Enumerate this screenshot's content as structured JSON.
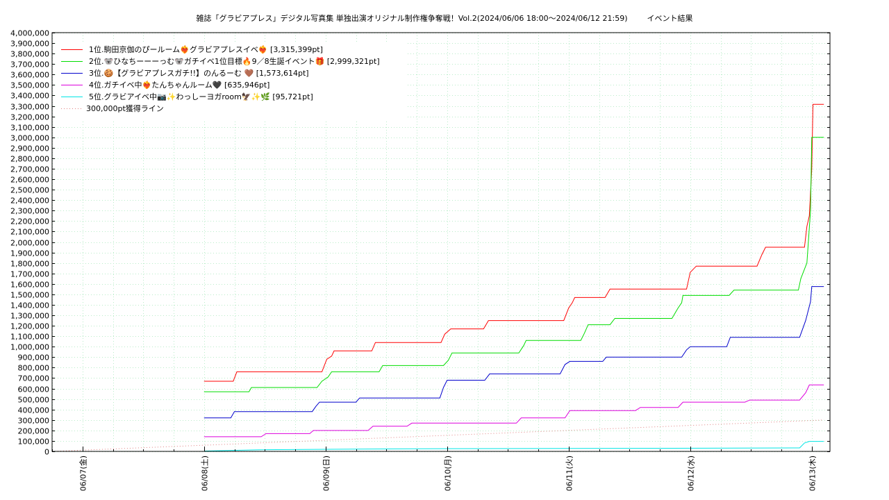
{
  "chart_data": {
    "type": "line",
    "title": "雑誌「グラビアプレス」デジタル写真集 単独出演オリジナル制作権争奪戦！Vol.2(2024/06/06 18:00～2024/06/12 21:59)",
    "subtitle": "イベント結果",
    "xlabel": "",
    "ylabel": "",
    "xlim": [
      0,
      6.4
    ],
    "ylim": [
      0,
      4000000
    ],
    "grid": true,
    "legend_position": "top-left",
    "y_ticks": [
      "0",
      "100,000",
      "200,000",
      "300,000",
      "400,000",
      "500,000",
      "600,000",
      "700,000",
      "800,000",
      "900,000",
      "1,000,000",
      "1,100,000",
      "1,200,000",
      "1,300,000",
      "1,400,000",
      "1,500,000",
      "1,600,000",
      "1,700,000",
      "1,800,000",
      "1,900,000",
      "2,000,000",
      "2,100,000",
      "2,200,000",
      "2,300,000",
      "2,400,000",
      "2,500,000",
      "2,600,000",
      "2,700,000",
      "2,800,000",
      "2,900,000",
      "3,000,000",
      "3,100,000",
      "3,200,000",
      "3,300,000",
      "3,400,000",
      "3,500,000",
      "3,600,000",
      "3,700,000",
      "3,800,000",
      "3,900,000",
      "4,000,000"
    ],
    "x_ticks": [
      {
        "label": "06/07(金)",
        "x": 0.25
      },
      {
        "label": "06/08(土)",
        "x": 1.25
      },
      {
        "label": "06/09(日)",
        "x": 2.25
      },
      {
        "label": "06/10(月)",
        "x": 3.25
      },
      {
        "label": "06/11(火)",
        "x": 4.25
      },
      {
        "label": "06/12(水)",
        "x": 5.25
      },
      {
        "label": "06/13(木)",
        "x": 6.25
      }
    ],
    "series": [
      {
        "name": "1位.駒田京伽のぴールーム❤️‍🔥グラビアプレスイベ❤️‍🔥 [3,315,399pt]",
        "color": "#ff0000",
        "points": [
          [
            1.25,
            670000
          ],
          [
            1.49,
            670000
          ],
          [
            1.52,
            760000
          ],
          [
            2.22,
            760000
          ],
          [
            2.26,
            880000
          ],
          [
            2.3,
            910000
          ],
          [
            2.32,
            960000
          ],
          [
            2.63,
            960000
          ],
          [
            2.66,
            1040000
          ],
          [
            3.2,
            1040000
          ],
          [
            3.23,
            1120000
          ],
          [
            3.28,
            1170000
          ],
          [
            3.55,
            1170000
          ],
          [
            3.59,
            1250000
          ],
          [
            4.21,
            1250000
          ],
          [
            4.25,
            1370000
          ],
          [
            4.28,
            1420000
          ],
          [
            4.3,
            1470000
          ],
          [
            4.55,
            1470000
          ],
          [
            4.59,
            1550000
          ],
          [
            5.22,
            1550000
          ],
          [
            5.25,
            1710000
          ],
          [
            5.3,
            1770000
          ],
          [
            5.51,
            1770000
          ],
          [
            5.8,
            1770000
          ],
          [
            5.84,
            1880000
          ],
          [
            5.87,
            1950000
          ],
          [
            6.19,
            1950000
          ],
          [
            6.21,
            2150000
          ],
          [
            6.23,
            2250000
          ],
          [
            6.25,
            2700000
          ],
          [
            6.26,
            3315000
          ],
          [
            6.35,
            3315000
          ]
        ]
      },
      {
        "name": "2位.🐨ひなちーーーっむ🐨ガチイベ1位目標🔥9／8生誕イベント🎁 [2,999,321pt]",
        "color": "#00dd00",
        "points": [
          [
            1.25,
            570000
          ],
          [
            1.62,
            570000
          ],
          [
            1.64,
            610000
          ],
          [
            2.18,
            610000
          ],
          [
            2.22,
            670000
          ],
          [
            2.27,
            710000
          ],
          [
            2.3,
            760000
          ],
          [
            2.69,
            760000
          ],
          [
            2.72,
            820000
          ],
          [
            3.22,
            820000
          ],
          [
            3.26,
            870000
          ],
          [
            3.29,
            940000
          ],
          [
            3.84,
            940000
          ],
          [
            3.88,
            1010000
          ],
          [
            3.9,
            1060000
          ],
          [
            4.35,
            1060000
          ],
          [
            4.38,
            1130000
          ],
          [
            4.41,
            1210000
          ],
          [
            4.59,
            1210000
          ],
          [
            4.63,
            1270000
          ],
          [
            5.1,
            1270000
          ],
          [
            5.15,
            1370000
          ],
          [
            5.18,
            1420000
          ],
          [
            5.19,
            1490000
          ],
          [
            5.57,
            1490000
          ],
          [
            5.61,
            1540000
          ],
          [
            6.14,
            1540000
          ],
          [
            6.16,
            1650000
          ],
          [
            6.21,
            1800000
          ],
          [
            6.24,
            2300000
          ],
          [
            6.25,
            3000000
          ],
          [
            6.35,
            3000000
          ]
        ]
      },
      {
        "name": "3位.🍪【グラビアプレスガチ!!】のんるーむ 🤎 [1,573,614pt]",
        "color": "#0000cc",
        "points": [
          [
            1.25,
            320000
          ],
          [
            1.47,
            320000
          ],
          [
            1.5,
            380000
          ],
          [
            2.14,
            380000
          ],
          [
            2.17,
            430000
          ],
          [
            2.2,
            470000
          ],
          [
            2.5,
            470000
          ],
          [
            2.53,
            510000
          ],
          [
            3.19,
            510000
          ],
          [
            3.22,
            610000
          ],
          [
            3.25,
            680000
          ],
          [
            3.56,
            680000
          ],
          [
            3.6,
            740000
          ],
          [
            4.18,
            740000
          ],
          [
            4.22,
            830000
          ],
          [
            4.26,
            860000
          ],
          [
            4.53,
            860000
          ],
          [
            4.56,
            900000
          ],
          [
            5.18,
            900000
          ],
          [
            5.22,
            970000
          ],
          [
            5.25,
            1000000
          ],
          [
            5.55,
            1000000
          ],
          [
            5.58,
            1090000
          ],
          [
            6.15,
            1090000
          ],
          [
            6.2,
            1250000
          ],
          [
            6.24,
            1430000
          ],
          [
            6.25,
            1575000
          ],
          [
            6.35,
            1575000
          ]
        ]
      },
      {
        "name": "4位.ガチイベ中❤️‍🔥たんちゃんルーム🖤 [635,946pt]",
        "color": "#dd00dd",
        "points": [
          [
            1.25,
            140000
          ],
          [
            1.72,
            140000
          ],
          [
            1.76,
            170000
          ],
          [
            2.12,
            170000
          ],
          [
            2.15,
            200000
          ],
          [
            2.6,
            200000
          ],
          [
            2.64,
            240000
          ],
          [
            2.92,
            240000
          ],
          [
            2.96,
            270000
          ],
          [
            3.82,
            270000
          ],
          [
            3.86,
            320000
          ],
          [
            4.22,
            320000
          ],
          [
            4.26,
            390000
          ],
          [
            4.8,
            390000
          ],
          [
            4.84,
            420000
          ],
          [
            5.15,
            420000
          ],
          [
            5.19,
            470000
          ],
          [
            5.7,
            470000
          ],
          [
            5.74,
            490000
          ],
          [
            6.15,
            490000
          ],
          [
            6.2,
            560000
          ],
          [
            6.23,
            635000
          ],
          [
            6.35,
            635000
          ]
        ]
      },
      {
        "name": "5位.グラビアイベ中📷✨わっしーヨガroom🦅✨🌿 [95,721pt]",
        "color": "#00e5e5",
        "points": [
          [
            1.25,
            3000
          ],
          [
            1.7,
            15000
          ],
          [
            3.0,
            25000
          ],
          [
            5.1,
            30000
          ],
          [
            6.15,
            33000
          ],
          [
            6.19,
            80000
          ],
          [
            6.23,
            95700
          ],
          [
            6.35,
            95700
          ]
        ]
      },
      {
        "name": "300,000pt獲得ライン",
        "color": "#e08080",
        "dotted": true,
        "points": [
          [
            0,
            0
          ],
          [
            6.35,
            300000
          ]
        ]
      }
    ]
  }
}
